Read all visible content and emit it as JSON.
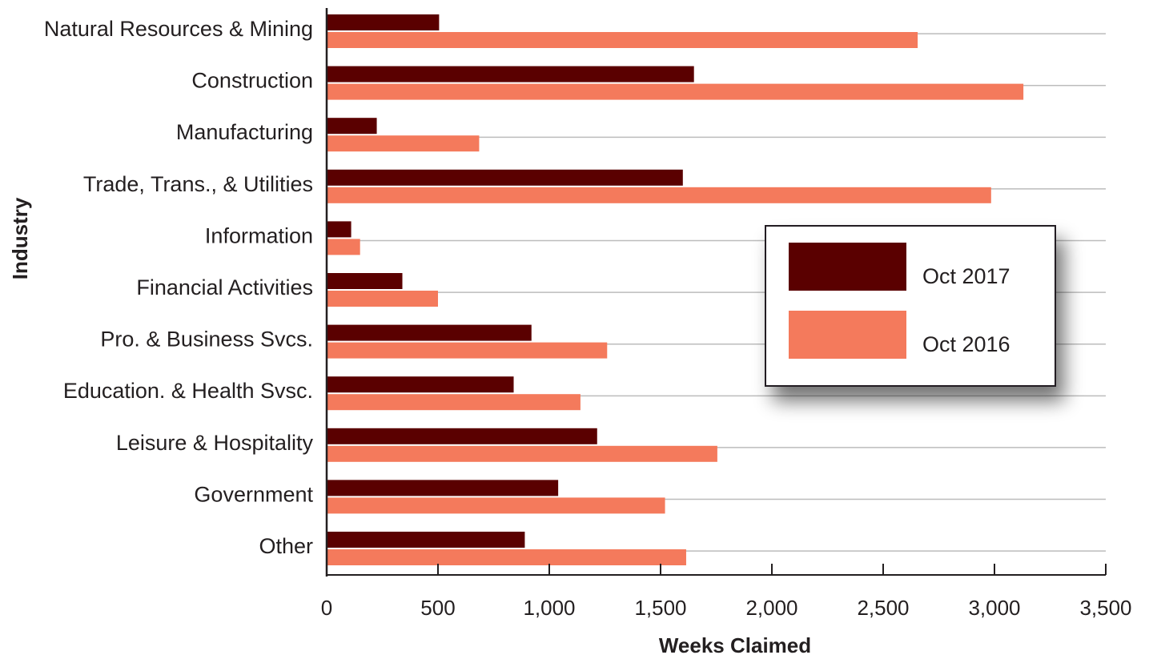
{
  "chart_data": {
    "type": "bar",
    "orientation": "horizontal",
    "categories": [
      "Natural Resources & Mining",
      "Construction",
      "Manufacturing",
      "Trade, Trans., & Utilities",
      "Information",
      "Financial Activities",
      "Pro. & Business Svcs.",
      "Education. & Health Svsc.",
      "Leisure & Hospitality",
      "Government",
      "Other"
    ],
    "series": [
      {
        "name": "Oct 2017",
        "color": "#5a0000",
        "values": [
          505,
          1650,
          225,
          1600,
          110,
          340,
          920,
          840,
          1215,
          1040,
          890
        ]
      },
      {
        "name": "Oct 2016",
        "color": "#f47a5c",
        "values": [
          2655,
          3130,
          685,
          2985,
          150,
          500,
          1260,
          1140,
          1755,
          1520,
          1615
        ]
      }
    ],
    "xlabel": "Weeks Claimed",
    "ylabel": "Industry",
    "xlim": [
      0,
      3500
    ],
    "xticks": [
      0,
      500,
      1000,
      1500,
      2000,
      2500,
      3000,
      3500
    ],
    "xtick_labels": [
      "0",
      "500",
      "1,000",
      "1,500",
      "2,000",
      "2,500",
      "3,000",
      "3,500"
    ],
    "grid": "horizontal separators",
    "legend_position": "right-center",
    "legend": [
      {
        "label": "Oct 2017",
        "color": "#5a0000"
      },
      {
        "label": "Oct 2016",
        "color": "#f47a5c"
      }
    ]
  }
}
